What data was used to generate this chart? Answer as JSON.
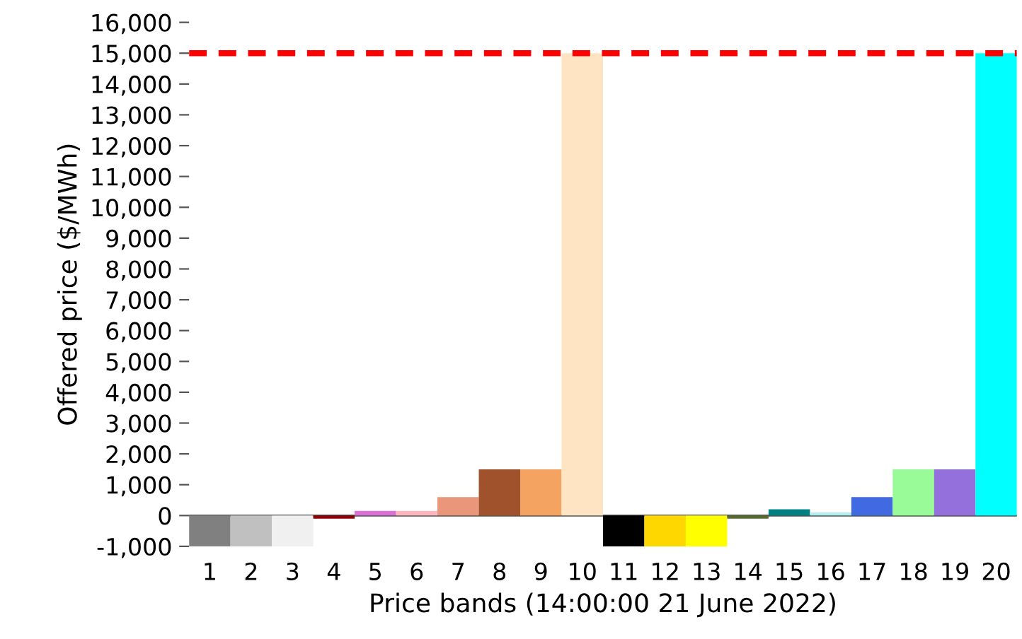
{
  "chart_data": {
    "type": "bar",
    "xlabel": "Price bands (14:00:00 21 June 2022)",
    "ylabel": "Offered price ($/MWh)",
    "categories": [
      "1",
      "2",
      "3",
      "4",
      "5",
      "6",
      "7",
      "8",
      "9",
      "10",
      "11",
      "12",
      "13",
      "14",
      "15",
      "16",
      "17",
      "18",
      "19",
      "20"
    ],
    "values": [
      -1000,
      -1000,
      -1000,
      -100,
      150,
      150,
      600,
      1500,
      1500,
      15000,
      -1000,
      -1000,
      -1000,
      -100,
      200,
      100,
      600,
      1500,
      1500,
      15000
    ],
    "colors": [
      "#808080",
      "#c0c0c0",
      "#f0f0f0",
      "#8b0000",
      "#da70d6",
      "#ffb6c1",
      "#e9967a",
      "#a0522d",
      "#f4a460",
      "#ffe4c4",
      "#000000",
      "#ffd700",
      "#ffff00",
      "#556b2f",
      "#008080",
      "#afeeee",
      "#4169e1",
      "#98fb98",
      "#9370db",
      "#00ffff"
    ],
    "ylim": [
      -1000,
      16000
    ],
    "yticks": [
      {
        "value": -1000,
        "label": "-1,000"
      },
      0,
      {
        "value": 1000,
        "label": "1,000"
      },
      {
        "value": 2000,
        "label": "2,000"
      },
      {
        "value": 3000,
        "label": "3,000"
      },
      {
        "value": 4000,
        "label": "4,000"
      },
      {
        "value": 5000,
        "label": "5,000"
      },
      {
        "value": 6000,
        "label": "6,000"
      },
      {
        "value": 7000,
        "label": "7,000"
      },
      {
        "value": 8000,
        "label": "8,000"
      },
      {
        "value": 9000,
        "label": "9,000"
      },
      {
        "value": 10000,
        "label": "10,000"
      },
      {
        "value": 11000,
        "label": "11,000"
      },
      {
        "value": 12000,
        "label": "12,000"
      },
      {
        "value": 13000,
        "label": "13,000"
      },
      {
        "value": 14000,
        "label": "14,000"
      },
      {
        "value": 15000,
        "label": "15,000"
      },
      {
        "value": 16000,
        "label": "16,000"
      }
    ],
    "ref_lines": [
      {
        "axis": "y",
        "value": 15000,
        "color": "#ff0000",
        "line_style": "dashed"
      }
    ],
    "grid": false
  }
}
